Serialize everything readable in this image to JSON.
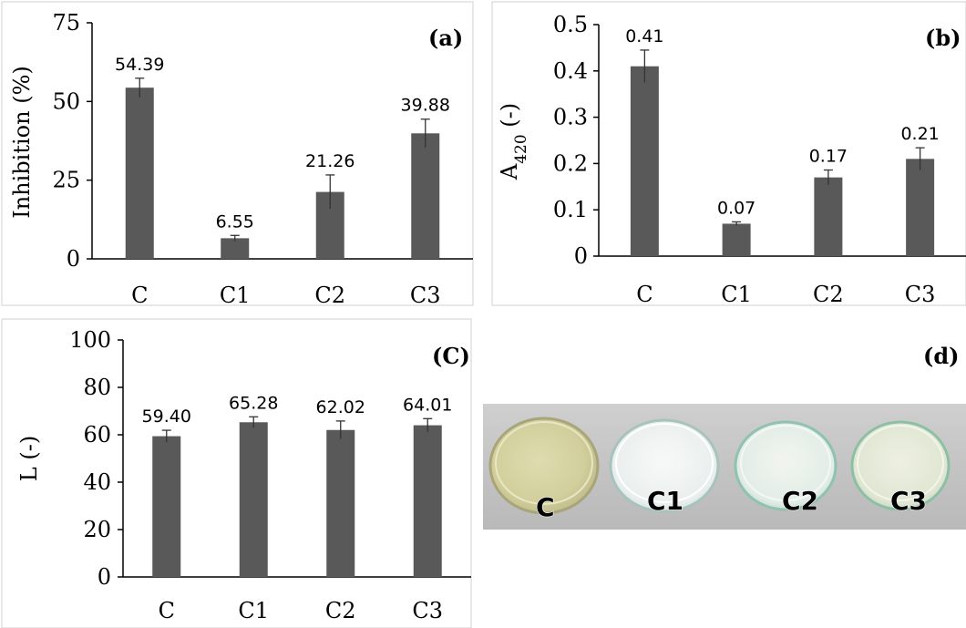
{
  "chart_data": [
    {
      "type": "bar",
      "panel": "(a)",
      "categories": [
        "C",
        "C1",
        "C2",
        "C3"
      ],
      "values": [
        54.39,
        6.55,
        21.26,
        39.88
      ],
      "errors": [
        3.0,
        0.9,
        5.4,
        4.5
      ],
      "value_labels": [
        "54.39",
        "6.55",
        "21.26",
        "39.88"
      ],
      "ylabel": "Inhibition (%)",
      "ylim": [
        0,
        75
      ],
      "yticks": [
        "0",
        "25",
        "50",
        "75"
      ],
      "grid": false
    },
    {
      "type": "bar",
      "panel": "(b)",
      "categories": [
        "C",
        "C1",
        "C2",
        "C3"
      ],
      "values": [
        0.41,
        0.07,
        0.17,
        0.21
      ],
      "errors": [
        0.035,
        0.004,
        0.016,
        0.024
      ],
      "value_labels": [
        "0.41",
        "0.07",
        "0.17",
        "0.21"
      ],
      "ylabel_main": "A",
      "ylabel_sub": "420",
      "ylabel_unit": " (-)",
      "ylim": [
        0,
        0.5
      ],
      "yticks": [
        "0",
        "0.1",
        "0.2",
        "0.3",
        "0.4",
        "0.5"
      ],
      "grid": false
    },
    {
      "type": "bar",
      "panel": "(C)",
      "categories": [
        "C",
        "C1",
        "C2",
        "C3"
      ],
      "values": [
        59.4,
        65.28,
        62.02,
        64.01
      ],
      "errors": [
        2.5,
        2.3,
        3.8,
        2.8
      ],
      "value_labels": [
        "59.40",
        "65.28",
        "62.02",
        "64.01"
      ],
      "ylabel": "L (-)",
      "ylim": [
        0,
        100
      ],
      "yticks": [
        "0",
        "20",
        "40",
        "60",
        "80",
        "100"
      ],
      "grid": false
    }
  ],
  "photo": {
    "panel": "(d)",
    "labels": [
      "C",
      "C1",
      "C2",
      "C3"
    ]
  },
  "colors": {
    "bar": "#595959",
    "axis": "#000000",
    "frame": "#d0d0d0",
    "photo_background": "#c3c3c3"
  }
}
